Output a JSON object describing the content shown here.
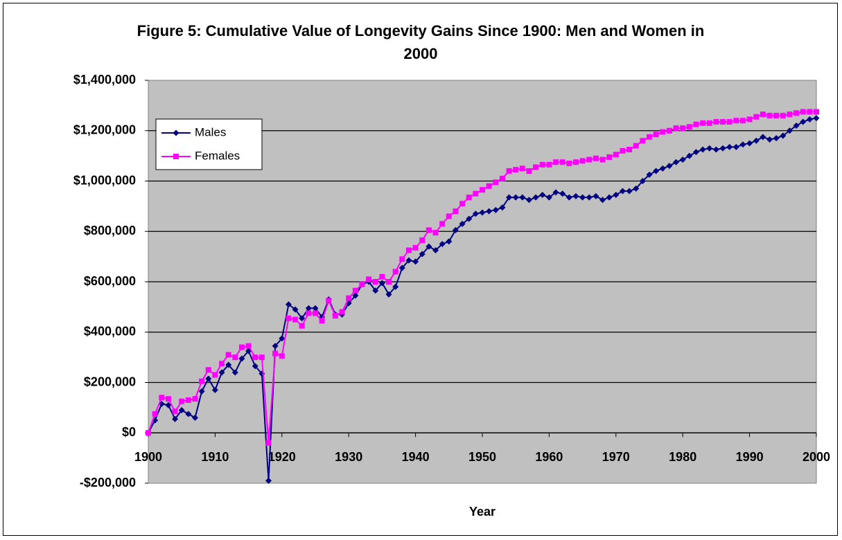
{
  "chart_data": {
    "type": "line",
    "title": "Figure 5: Cumulative Value of Longevity Gains Since 1900: Men and Women in 2000",
    "x_label": "Year",
    "x": [
      1900,
      1901,
      1902,
      1903,
      1904,
      1905,
      1906,
      1907,
      1908,
      1909,
      1910,
      1911,
      1912,
      1913,
      1914,
      1915,
      1916,
      1917,
      1918,
      1919,
      1920,
      1921,
      1922,
      1923,
      1924,
      1925,
      1926,
      1927,
      1928,
      1929,
      1930,
      1931,
      1932,
      1933,
      1934,
      1935,
      1936,
      1937,
      1938,
      1939,
      1940,
      1941,
      1942,
      1943,
      1944,
      1945,
      1946,
      1947,
      1948,
      1949,
      1950,
      1951,
      1952,
      1953,
      1954,
      1955,
      1956,
      1957,
      1958,
      1959,
      1960,
      1961,
      1962,
      1963,
      1964,
      1965,
      1966,
      1967,
      1968,
      1969,
      1970,
      1971,
      1972,
      1973,
      1974,
      1975,
      1976,
      1977,
      1978,
      1979,
      1980,
      1981,
      1982,
      1983,
      1984,
      1985,
      1986,
      1987,
      1988,
      1989,
      1990,
      1991,
      1992,
      1993,
      1994,
      1995,
      1996,
      1997,
      1998,
      1999,
      2000
    ],
    "series": [
      {
        "name": "Males",
        "color": "#000080",
        "marker": "diamond",
        "values": [
          0,
          50000,
          115000,
          110000,
          55000,
          90000,
          75000,
          60000,
          165000,
          215000,
          170000,
          240000,
          270000,
          240000,
          295000,
          325000,
          265000,
          235000,
          -190000,
          345000,
          375000,
          510000,
          490000,
          455000,
          495000,
          495000,
          460000,
          530000,
          470000,
          470000,
          515000,
          545000,
          590000,
          600000,
          565000,
          595000,
          550000,
          580000,
          655000,
          685000,
          680000,
          710000,
          740000,
          725000,
          750000,
          760000,
          805000,
          830000,
          850000,
          870000,
          875000,
          880000,
          885000,
          895000,
          935000,
          935000,
          935000,
          925000,
          935000,
          945000,
          935000,
          955000,
          950000,
          935000,
          940000,
          935000,
          935000,
          940000,
          925000,
          935000,
          945000,
          960000,
          960000,
          970000,
          1000000,
          1025000,
          1040000,
          1050000,
          1060000,
          1075000,
          1085000,
          1100000,
          1115000,
          1125000,
          1130000,
          1125000,
          1130000,
          1135000,
          1135000,
          1145000,
          1150000,
          1160000,
          1175000,
          1165000,
          1170000,
          1180000,
          1200000,
          1220000,
          1235000,
          1245000,
          1250000
        ]
      },
      {
        "name": "Females",
        "color": "#ff00ff",
        "marker": "square",
        "values": [
          0,
          75000,
          140000,
          135000,
          85000,
          125000,
          130000,
          135000,
          205000,
          250000,
          230000,
          275000,
          310000,
          300000,
          340000,
          345000,
          300000,
          300000,
          -40000,
          315000,
          305000,
          455000,
          450000,
          425000,
          475000,
          475000,
          445000,
          525000,
          465000,
          480000,
          535000,
          565000,
          590000,
          610000,
          600000,
          620000,
          600000,
          640000,
          690000,
          725000,
          735000,
          765000,
          805000,
          795000,
          830000,
          860000,
          880000,
          910000,
          935000,
          950000,
          965000,
          980000,
          995000,
          1010000,
          1040000,
          1045000,
          1050000,
          1040000,
          1055000,
          1065000,
          1065000,
          1075000,
          1075000,
          1070000,
          1075000,
          1080000,
          1085000,
          1090000,
          1085000,
          1095000,
          1105000,
          1120000,
          1125000,
          1140000,
          1160000,
          1175000,
          1185000,
          1195000,
          1200000,
          1210000,
          1210000,
          1215000,
          1225000,
          1230000,
          1230000,
          1235000,
          1235000,
          1235000,
          1240000,
          1240000,
          1245000,
          1255000,
          1265000,
          1260000,
          1260000,
          1260000,
          1265000,
          1270000,
          1275000,
          1275000,
          1275000
        ]
      }
    ],
    "xlim": [
      1900,
      2000
    ],
    "xticks": [
      1900,
      1910,
      1920,
      1930,
      1940,
      1950,
      1960,
      1970,
      1980,
      1990,
      2000
    ],
    "ylim": [
      -200000,
      1400000
    ],
    "yticks": [
      {
        "value": -200000,
        "label": "-$200,000"
      },
      {
        "value": 0,
        "label": "$0"
      },
      {
        "value": 200000,
        "label": "$200,000"
      },
      {
        "value": 400000,
        "label": "$400,000"
      },
      {
        "value": 600000,
        "label": "$600,000"
      },
      {
        "value": 800000,
        "label": "$800,000"
      },
      {
        "value": 1000000,
        "label": "$1,000,000"
      },
      {
        "value": 1200000,
        "label": "$1,200,000"
      },
      {
        "value": 1400000,
        "label": "$1,400,000"
      }
    ],
    "grid": true,
    "plot_background": "#c0c0c0",
    "legend": "upper-left"
  }
}
